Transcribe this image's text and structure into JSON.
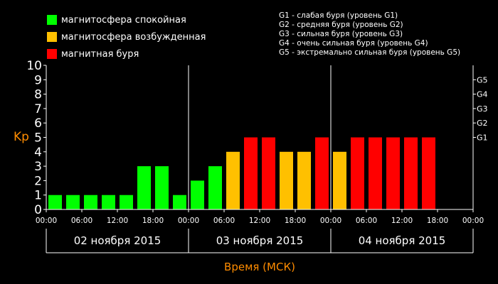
{
  "legend": {
    "items": [
      {
        "label": "магнитосфера спокойная",
        "color": "#00ff00"
      },
      {
        "label": "магнитосфера возбужденная",
        "color": "#ffc000"
      },
      {
        "label": "магнитная буря",
        "color": "#ff0000"
      }
    ],
    "storm_levels": [
      "G1 - слабая буря (уровень G1)",
      "G2 - средняя буря (уровень G2)",
      "G3 - сильная буря (уровень G3)",
      "G4 - очень сильная буря (уровень G4)",
      "G5 - экстремально сильная буря (уровень G5)"
    ]
  },
  "chart_data": {
    "type": "bar",
    "ylabel": "Kp",
    "xlabel": "Время (МСК)",
    "ylim": [
      0,
      10
    ],
    "y_ticks": [
      "0",
      "1",
      "2",
      "3",
      "4",
      "5",
      "6",
      "7",
      "8",
      "9",
      "10"
    ],
    "g_ticks": [
      {
        "label": "G1",
        "kp": 5
      },
      {
        "label": "G2",
        "kp": 6
      },
      {
        "label": "G3",
        "kp": 7
      },
      {
        "label": "G4",
        "kp": 8
      },
      {
        "label": "G5",
        "kp": 9
      }
    ],
    "x_tick_labels": [
      "00:00",
      "06:00",
      "12:00",
      "18:00",
      "00:00",
      "06:00",
      "12:00",
      "18:00",
      "00:00",
      "06:00",
      "12:00",
      "18:00",
      "00:00"
    ],
    "days": [
      "02 ноября 2015",
      "03 ноября 2015",
      "04 ноября 2015"
    ],
    "slots_per_day": 8,
    "values": [
      1,
      1,
      1,
      1,
      1,
      3,
      3,
      1,
      2,
      3,
      4,
      5,
      5,
      4,
      4,
      5,
      4,
      5,
      5,
      5,
      5,
      5,
      null,
      null
    ],
    "colors": {
      "quiet": "#00ff00",
      "active": "#ffc000",
      "storm": "#ff0000"
    },
    "ylabel_color": "#ff8c00",
    "xlabel_color": "#ff8c00"
  }
}
